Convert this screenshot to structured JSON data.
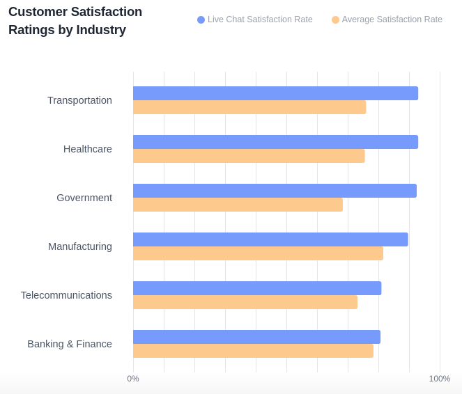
{
  "chart_data": {
    "type": "bar",
    "orientation": "horizontal",
    "title": "Customer Satisfaction Ratings by Industry",
    "title_lines": [
      "Customer Satisfaction",
      "Ratings by Industry"
    ],
    "categories": [
      "Transportation",
      "Healthcare",
      "Government",
      "Manufacturing",
      "Telecommunications",
      "Banking & Finance"
    ],
    "series": [
      {
        "name": "Live Chat Satisfaction Rate",
        "color": "#779bfd",
        "values": [
          93,
          93,
          92.5,
          89.7,
          81,
          80.7
        ]
      },
      {
        "name": "Average Satisfaction Rate",
        "color": "#fec98c",
        "values": [
          76,
          75.6,
          68.4,
          81.6,
          73.2,
          78.4
        ]
      }
    ],
    "xlabel": "",
    "ylabel": "",
    "xlim": [
      0,
      100
    ],
    "x_ticks": [
      0,
      10,
      20,
      30,
      40,
      50,
      60,
      70,
      80,
      90,
      100
    ],
    "x_tick_labels": {
      "0": "0%",
      "100": "100%"
    },
    "unit": "%",
    "grid": true,
    "legend_position": "top-right"
  },
  "colors": {
    "grid": "#e3e5ea",
    "label_text": "#4b5565",
    "legend_text": "#9aa1ad",
    "title_text": "#1f2633"
  }
}
